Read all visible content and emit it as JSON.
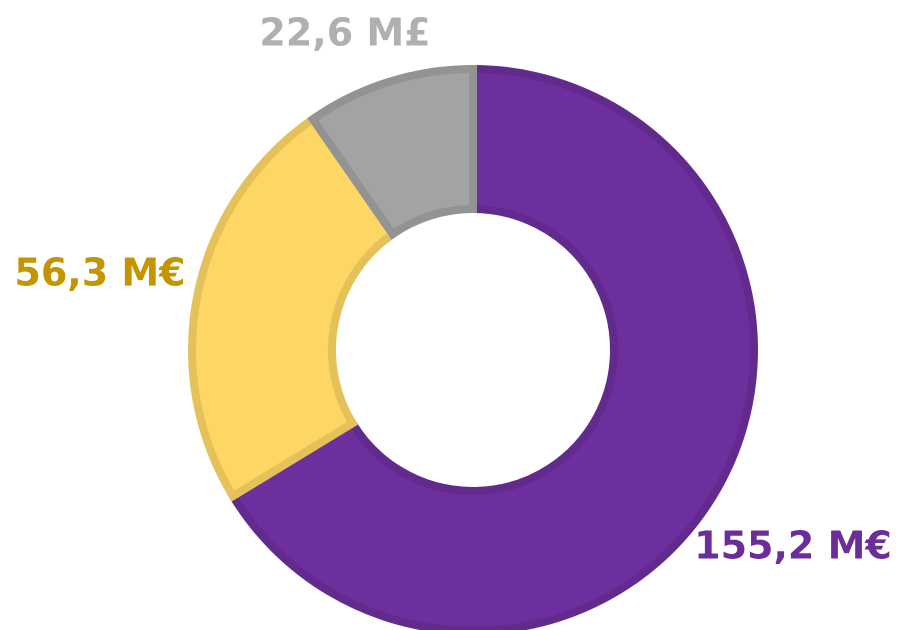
{
  "chart_data": {
    "type": "donut",
    "categories": [
      null,
      null,
      null
    ],
    "values": [
      155.2,
      56.3,
      22.6
    ],
    "value_labels": [
      "155,2 M€",
      "56,3 M€",
      "22,6 M£"
    ],
    "colors": [
      "#6e2f9e",
      "#fdd663",
      "#a3a3a3"
    ],
    "label_colors": [
      "#6b2d9a",
      "#c49500",
      "#b0b0b0"
    ]
  }
}
